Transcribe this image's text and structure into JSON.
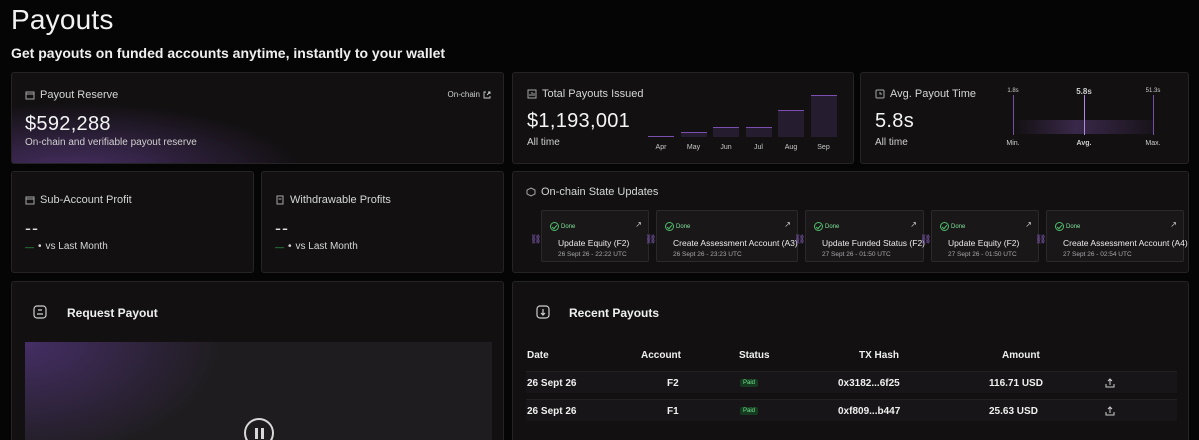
{
  "page": {
    "title": "Payouts",
    "subtitle": "Get payouts on funded accounts anytime, instantly to your wallet"
  },
  "reserve": {
    "label": "Payout Reserve",
    "icon": "box-icon",
    "link": "On-chain",
    "value": "$592,288",
    "sub": "On-chain and verifiable payout reserve"
  },
  "total": {
    "label": "Total Payouts Issued",
    "icon": "chart-icon",
    "value": "$1,193,001",
    "sub": "All time",
    "chart_data": {
      "type": "bar",
      "categories": [
        "Apr",
        "May",
        "Jun",
        "Jul",
        "Aug",
        "Sep"
      ],
      "values": [
        2,
        8,
        16,
        17,
        45,
        70
      ],
      "ylim": [
        0,
        70
      ]
    }
  },
  "avg": {
    "label": "Avg. Payout Time",
    "icon": "clock-icon",
    "value": "5.8s",
    "sub": "All time",
    "scale": {
      "min_value": "1.8s",
      "avg_value": "5.8s",
      "max_value": "51.3s",
      "min_label": "Min.",
      "avg_label": "Avg.",
      "max_label": "Max."
    }
  },
  "subacc": {
    "label": "Sub-Account Profit",
    "value": "--",
    "vs": "vs Last Month",
    "trend": "—"
  },
  "withdraw": {
    "label": "Withdrawable Profits",
    "value": "--",
    "vs": "vs Last Month",
    "trend": "—"
  },
  "state": {
    "label": "On-chain State Updates",
    "items": [
      {
        "status": "Done",
        "title": "Update Equity (F2)",
        "time": "26 Sept 26 - 22:22 UTC"
      },
      {
        "status": "Done",
        "title": "Create Assessment Account (A3)",
        "time": "26 Sept 26 - 23:23 UTC"
      },
      {
        "status": "Done",
        "title": "Update Funded Status (F2)",
        "time": "27 Sept 26 - 01:50 UTC"
      },
      {
        "status": "Done",
        "title": "Update Equity (F2)",
        "time": "27 Sept 26 - 01:50 UTC"
      },
      {
        "status": "Done",
        "title": "Create Assessment Account (A4)",
        "time": "27 Sept 26 - 02:54 UTC"
      }
    ]
  },
  "request": {
    "title": "Request Payout"
  },
  "recent": {
    "title": "Recent Payouts",
    "columns": {
      "date": "Date",
      "account": "Account",
      "status": "Status",
      "tx": "TX Hash",
      "amount": "Amount"
    },
    "rows": [
      {
        "date": "26 Sept 26",
        "account": "F2",
        "status": "Paid",
        "tx": "0x3182...6f25",
        "amount": "116.71 USD"
      },
      {
        "date": "26 Sept 26",
        "account": "F1",
        "status": "Paid",
        "tx": "0xf809...b447",
        "amount": "25.63 USD"
      }
    ]
  }
}
